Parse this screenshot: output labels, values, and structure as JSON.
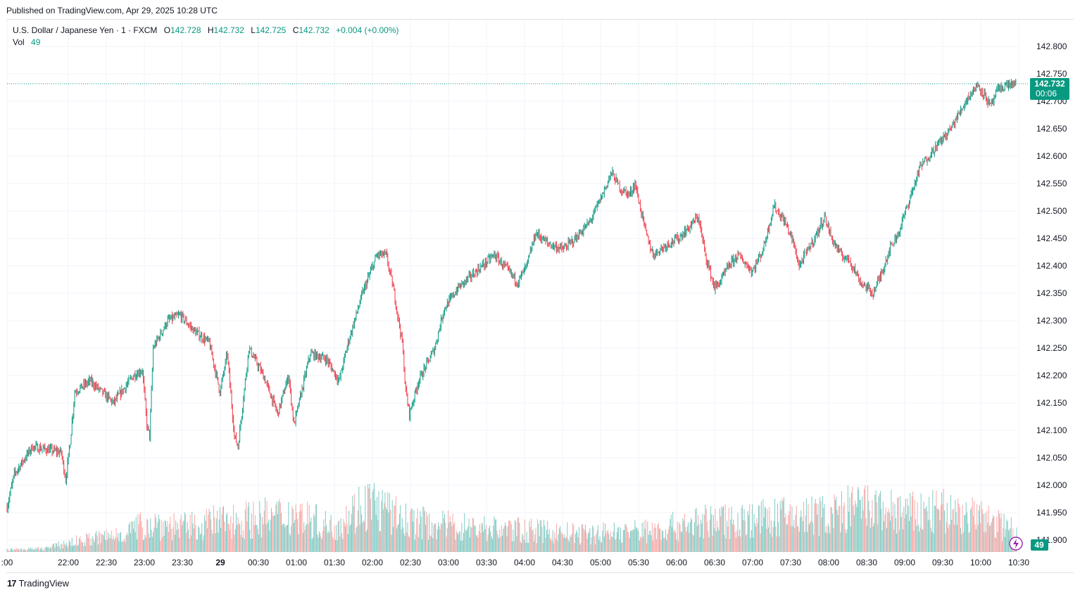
{
  "header": {
    "published": "Published on TradingView.com, Apr 29, 2025 10:28 UTC"
  },
  "legend": {
    "symbol": "U.S. Dollar / Japanese Yen · 1 · FXCM",
    "open_label": "O",
    "open": "142.728",
    "high_label": "H",
    "high": "142.732",
    "low_label": "L",
    "low": "142.725",
    "close_label": "C",
    "close": "142.732",
    "change": "+0.004 (+0.00%)",
    "vol_label": "Vol",
    "vol": "49"
  },
  "price_badge": {
    "price": "142.732",
    "countdown": "00:06",
    "color": "#089981"
  },
  "vol_badge": {
    "value": "49",
    "color": "#089981"
  },
  "footer": {
    "brand": "TradingView",
    "logo": "17"
  },
  "colors": {
    "up": "#089981",
    "down": "#f23645",
    "vol_up": "#80cbc4",
    "vol_down": "#f7a9a7",
    "grid": "#f0f3fa"
  },
  "chart_data": {
    "type": "candlestick",
    "y_ticks": [
      "142.800",
      "142.750",
      "142.700",
      "142.650",
      "142.600",
      "142.550",
      "142.500",
      "142.450",
      "142.400",
      "142.350",
      "142.300",
      "142.250",
      "142.200",
      "142.150",
      "142.100",
      "142.050",
      "142.000",
      "141.950",
      "141.900"
    ],
    "x_ticks": [
      ":00",
      "22:00",
      "22:30",
      "23:00",
      "23:30",
      "29",
      "00:30",
      "01:00",
      "01:30",
      "02:00",
      "02:30",
      "03:00",
      "03:30",
      "04:00",
      "04:30",
      "05:00",
      "05:30",
      "06:00",
      "06:30",
      "07:00",
      "07:30",
      "08:00",
      "08:30",
      "09:00",
      "09:30",
      "10:00",
      "10:30"
    ],
    "x_tick_bold": "29",
    "ylim": [
      141.88,
      142.82
    ],
    "last_price": 142.732,
    "close_path": [
      [
        0,
        141.96
      ],
      [
        8,
        142.02
      ],
      [
        28,
        142.07
      ],
      [
        60,
        142.06
      ],
      [
        65,
        142.01
      ],
      [
        70,
        142.08
      ],
      [
        75,
        142.17
      ],
      [
        92,
        142.19
      ],
      [
        118,
        142.15
      ],
      [
        140,
        142.2
      ],
      [
        150,
        142.21
      ],
      [
        155,
        142.11
      ],
      [
        158,
        142.09
      ],
      [
        162,
        142.25
      ],
      [
        178,
        142.3
      ],
      [
        192,
        142.31
      ],
      [
        208,
        142.28
      ],
      [
        224,
        142.26
      ],
      [
        236,
        142.17
      ],
      [
        244,
        142.24
      ],
      [
        252,
        142.09
      ],
      [
        256,
        142.07
      ],
      [
        268,
        142.25
      ],
      [
        284,
        142.2
      ],
      [
        300,
        142.13
      ],
      [
        312,
        142.2
      ],
      [
        318,
        142.11
      ],
      [
        336,
        142.24
      ],
      [
        354,
        142.23
      ],
      [
        368,
        142.19
      ],
      [
        378,
        142.26
      ],
      [
        394,
        142.35
      ],
      [
        410,
        142.42
      ],
      [
        420,
        142.42
      ],
      [
        428,
        142.36
      ],
      [
        438,
        142.26
      ],
      [
        442,
        142.17
      ],
      [
        446,
        142.13
      ],
      [
        456,
        142.19
      ],
      [
        474,
        142.25
      ],
      [
        484,
        142.32
      ],
      [
        500,
        142.36
      ],
      [
        520,
        142.39
      ],
      [
        540,
        142.42
      ],
      [
        556,
        142.39
      ],
      [
        566,
        142.37
      ],
      [
        576,
        142.4
      ],
      [
        586,
        142.46
      ],
      [
        600,
        142.44
      ],
      [
        616,
        142.43
      ],
      [
        630,
        142.45
      ],
      [
        646,
        142.48
      ],
      [
        660,
        142.53
      ],
      [
        670,
        142.57
      ],
      [
        680,
        142.54
      ],
      [
        690,
        142.53
      ],
      [
        696,
        142.55
      ],
      [
        700,
        142.52
      ],
      [
        708,
        142.46
      ],
      [
        716,
        142.42
      ],
      [
        732,
        142.44
      ],
      [
        744,
        142.45
      ],
      [
        756,
        142.47
      ],
      [
        766,
        142.49
      ],
      [
        774,
        142.42
      ],
      [
        784,
        142.36
      ],
      [
        790,
        142.37
      ],
      [
        800,
        142.4
      ],
      [
        810,
        142.42
      ],
      [
        826,
        142.39
      ],
      [
        838,
        142.43
      ],
      [
        850,
        142.51
      ],
      [
        862,
        142.48
      ],
      [
        870,
        142.45
      ],
      [
        878,
        142.4
      ],
      [
        888,
        142.43
      ],
      [
        898,
        142.46
      ],
      [
        906,
        142.49
      ],
      [
        914,
        142.45
      ],
      [
        924,
        142.42
      ],
      [
        934,
        142.41
      ],
      [
        946,
        142.37
      ],
      [
        960,
        142.35
      ],
      [
        970,
        142.39
      ],
      [
        978,
        142.43
      ],
      [
        988,
        142.46
      ],
      [
        1000,
        142.52
      ],
      [
        1012,
        142.58
      ],
      [
        1026,
        142.61
      ],
      [
        1036,
        142.63
      ],
      [
        1046,
        142.65
      ],
      [
        1056,
        142.68
      ],
      [
        1066,
        142.71
      ],
      [
        1076,
        142.73
      ],
      [
        1084,
        142.71
      ],
      [
        1090,
        142.69
      ],
      [
        1098,
        142.72
      ],
      [
        1108,
        142.73
      ],
      [
        1118,
        142.732
      ]
    ],
    "vol_path": [
      [
        0,
        2
      ],
      [
        40,
        3
      ],
      [
        80,
        10
      ],
      [
        120,
        15
      ],
      [
        160,
        26
      ],
      [
        200,
        22
      ],
      [
        240,
        28
      ],
      [
        280,
        30
      ],
      [
        320,
        34
      ],
      [
        360,
        22
      ],
      [
        400,
        45
      ],
      [
        440,
        28
      ],
      [
        480,
        24
      ],
      [
        520,
        22
      ],
      [
        560,
        20
      ],
      [
        600,
        18
      ],
      [
        640,
        16
      ],
      [
        680,
        18
      ],
      [
        720,
        20
      ],
      [
        760,
        26
      ],
      [
        800,
        28
      ],
      [
        840,
        30
      ],
      [
        880,
        32
      ],
      [
        920,
        34
      ],
      [
        940,
        40
      ],
      [
        960,
        38
      ],
      [
        1000,
        34
      ],
      [
        1040,
        36
      ],
      [
        1080,
        30
      ],
      [
        1118,
        20
      ]
    ],
    "vol_max": 120
  }
}
